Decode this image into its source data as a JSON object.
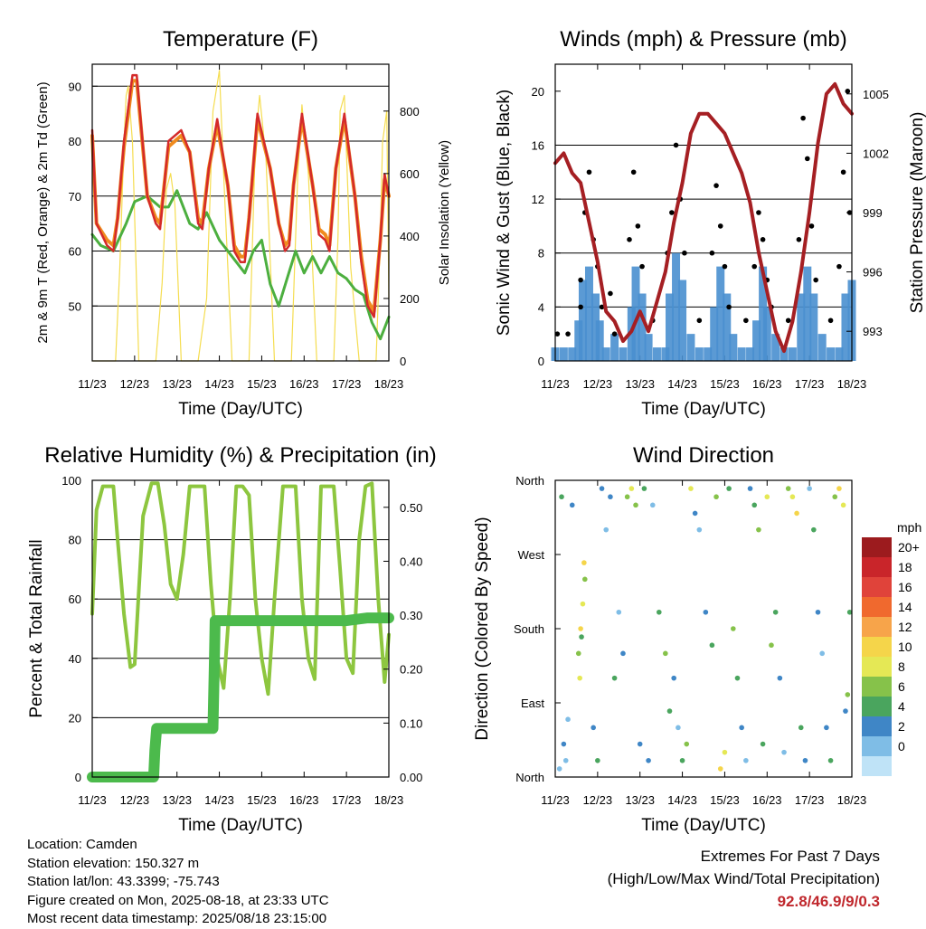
{
  "chart_data": [
    {
      "type": "line",
      "title": "Temperature (F)",
      "xlabel": "Time (Day/UTC)",
      "ylabel": "2m & 9m T (Red, Orange) & 2m Td (Green)",
      "y2label": "Solar Insolation (Yellow)",
      "x_ticks": [
        "11/23",
        "12/23",
        "13/23",
        "14/23",
        "15/23",
        "16/23",
        "17/23",
        "18/23"
      ],
      "xlim": [
        0,
        7
      ],
      "ylim": [
        40,
        94
      ],
      "y_ticks": [
        50,
        60,
        70,
        80,
        90
      ],
      "y2lim": [
        0,
        950
      ],
      "y2_ticks": [
        0,
        200,
        400,
        600,
        800
      ],
      "grid": true,
      "series": [
        {
          "name": "2m T",
          "color": "#d42a2a",
          "x": [
            0.0,
            0.1,
            0.35,
            0.5,
            0.6,
            0.75,
            0.95,
            1.05,
            1.3,
            1.5,
            1.6,
            1.8,
            2.1,
            2.3,
            2.5,
            2.6,
            2.75,
            2.95,
            3.2,
            3.35,
            3.5,
            3.6,
            3.7,
            3.9,
            4.2,
            4.4,
            4.55,
            4.65,
            4.75,
            4.95,
            5.2,
            5.35,
            5.5,
            5.6,
            5.75,
            5.95,
            6.2,
            6.35,
            6.5,
            6.65,
            6.8,
            6.9,
            7.0
          ],
          "values": [
            82,
            65,
            61,
            60,
            66,
            80,
            92,
            92,
            70,
            65,
            64,
            80,
            82,
            78,
            65,
            64,
            75,
            84,
            72,
            60,
            58,
            58,
            66,
            85,
            75,
            65,
            60,
            61,
            72,
            85,
            72,
            63,
            62,
            60,
            75,
            85,
            70,
            58,
            50,
            48,
            62,
            74,
            70
          ]
        },
        {
          "name": "9m T",
          "color": "#f08b1e",
          "x": [
            0.0,
            0.1,
            0.35,
            0.5,
            0.6,
            0.75,
            0.95,
            1.05,
            1.3,
            1.5,
            1.6,
            1.8,
            2.1,
            2.3,
            2.5,
            2.6,
            2.75,
            2.95,
            3.2,
            3.35,
            3.5,
            3.6,
            3.7,
            3.9,
            4.2,
            4.4,
            4.55,
            4.65,
            4.75,
            4.95,
            5.2,
            5.35,
            5.5,
            5.6,
            5.75,
            5.95,
            6.2,
            6.35,
            6.5,
            6.65,
            6.8,
            6.9,
            7.0
          ],
          "values": [
            81,
            65,
            62,
            61,
            66,
            79,
            91,
            91,
            70,
            66,
            65,
            79,
            81,
            78,
            66,
            65,
            75,
            83,
            72,
            61,
            59,
            59,
            66,
            84,
            75,
            65,
            61,
            62,
            72,
            84,
            72,
            64,
            63,
            61,
            75,
            84,
            70,
            59,
            51,
            49,
            62,
            73,
            70
          ]
        },
        {
          "name": "2m Td",
          "color": "#4caf3f",
          "x": [
            0.0,
            0.2,
            0.5,
            0.8,
            1.0,
            1.3,
            1.6,
            1.8,
            2.0,
            2.3,
            2.5,
            2.7,
            3.0,
            3.3,
            3.6,
            3.8,
            4.0,
            4.2,
            4.4,
            4.6,
            4.8,
            5.0,
            5.2,
            5.4,
            5.6,
            5.8,
            6.0,
            6.2,
            6.4,
            6.6,
            6.8,
            7.0
          ],
          "values": [
            63,
            61,
            60,
            65,
            69,
            70,
            68,
            68,
            71,
            65,
            64,
            67,
            62,
            59,
            56,
            60,
            62,
            54,
            50,
            55,
            60,
            56,
            59,
            56,
            59,
            56,
            55,
            53,
            52,
            47,
            44,
            48
          ]
        },
        {
          "name": "Solar Insolation",
          "color": "#f5dd50",
          "axis": "y2",
          "x": [
            0.0,
            0.3,
            0.55,
            0.65,
            0.75,
            0.8,
            0.85,
            0.95,
            1.1,
            1.3,
            1.5,
            1.65,
            1.75,
            1.85,
            1.95,
            2.1,
            2.3,
            2.5,
            2.7,
            2.85,
            3.0,
            3.1,
            3.3,
            3.5,
            3.7,
            3.85,
            3.95,
            4.1,
            4.3,
            4.5,
            4.7,
            4.85,
            4.95,
            5.1,
            5.3,
            5.5,
            5.7,
            5.8,
            5.85,
            5.95,
            6.1,
            6.3,
            6.5,
            6.7,
            6.8,
            6.85,
            6.95,
            7.0
          ],
          "values": [
            0,
            0,
            0,
            300,
            700,
            850,
            880,
            700,
            0,
            0,
            0,
            250,
            550,
            600,
            500,
            0,
            0,
            0,
            200,
            800,
            930,
            600,
            0,
            0,
            0,
            700,
            850,
            650,
            0,
            0,
            0,
            600,
            820,
            600,
            0,
            0,
            0,
            400,
            800,
            850,
            300,
            0,
            0,
            0,
            400,
            700,
            800,
            200
          ]
        }
      ]
    },
    {
      "type": "scatter",
      "title": "Winds (mph) & Pressure (mb)",
      "xlabel": "Time (Day/UTC)",
      "ylabel": "Sonic Wind & Gust (Blue, Black)",
      "y2label": "Station Pressure (Maroon)",
      "x_ticks": [
        "11/23",
        "12/23",
        "13/23",
        "14/23",
        "15/23",
        "16/23",
        "17/23",
        "18/23"
      ],
      "xlim": [
        0,
        7
      ],
      "ylim": [
        0,
        22
      ],
      "y_ticks": [
        0,
        4,
        8,
        12,
        16,
        20
      ],
      "y2lim": [
        991.5,
        1006.5
      ],
      "y2_ticks": [
        993,
        996,
        999,
        1002,
        1005
      ],
      "grid": true,
      "wind": {
        "name": "Sonic Wind",
        "color": "#4a90d0",
        "x": [
          0.0,
          0.2,
          0.4,
          0.55,
          0.65,
          0.8,
          0.95,
          1.05,
          1.2,
          1.4,
          1.6,
          1.8,
          1.9,
          2.05,
          2.2,
          2.4,
          2.6,
          2.7,
          2.85,
          3.0,
          3.2,
          3.4,
          3.6,
          3.75,
          3.9,
          4.05,
          4.2,
          4.4,
          4.6,
          4.75,
          4.9,
          5.0,
          5.2,
          5.4,
          5.6,
          5.8,
          5.95,
          6.1,
          6.3,
          6.5,
          6.7,
          6.85,
          7.0
        ],
        "values": [
          1,
          1,
          1,
          3,
          6,
          7,
          5,
          3,
          1,
          2,
          1,
          4,
          7,
          5,
          2,
          1,
          1,
          5,
          8,
          6,
          2,
          1,
          1,
          4,
          7,
          5,
          2,
          1,
          1,
          3,
          7,
          4,
          2,
          1,
          1,
          5,
          7,
          5,
          2,
          1,
          1,
          5,
          6
        ]
      },
      "gust": {
        "name": "Gust",
        "color": "#000000",
        "x": [
          0.05,
          0.3,
          0.6,
          0.7,
          0.8,
          0.9,
          1.0,
          1.1,
          1.4,
          1.75,
          1.85,
          1.95,
          2.05,
          2.3,
          2.65,
          2.75,
          2.85,
          2.95,
          3.05,
          3.4,
          3.7,
          3.8,
          3.9,
          4.0,
          4.1,
          4.5,
          4.7,
          4.8,
          4.9,
          5.0,
          5.1,
          5.5,
          5.75,
          5.85,
          5.95,
          6.05,
          6.15,
          6.5,
          6.7,
          6.8,
          6.9,
          6.95,
          2.92,
          1.3,
          0.6
        ],
        "values": [
          2,
          2,
          6,
          11,
          14,
          9,
          7,
          4,
          2,
          9,
          14,
          10,
          7,
          3,
          8,
          11,
          16,
          12,
          8,
          3,
          8,
          13,
          10,
          7,
          4,
          3,
          7,
          11,
          9,
          6,
          4,
          3,
          9,
          18,
          15,
          10,
          6,
          3,
          7,
          14,
          20,
          11,
          12,
          5,
          4
        ]
      },
      "pressure": {
        "name": "Station Pressure",
        "color": "#a51f23",
        "x": [
          0.0,
          0.2,
          0.4,
          0.6,
          0.8,
          1.0,
          1.2,
          1.4,
          1.6,
          1.8,
          2.0,
          2.2,
          2.4,
          2.6,
          2.8,
          3.0,
          3.2,
          3.4,
          3.6,
          3.8,
          4.0,
          4.2,
          4.4,
          4.6,
          4.8,
          5.0,
          5.2,
          5.4,
          5.6,
          5.8,
          6.0,
          6.2,
          6.4,
          6.6,
          6.8,
          7.0
        ],
        "values": [
          1001.5,
          1002,
          1001,
          1000.5,
          998.5,
          996.5,
          994,
          993.5,
          992.5,
          993,
          994,
          993,
          994.5,
          996,
          998.5,
          1000.5,
          1003,
          1004,
          1004,
          1003.5,
          1003,
          1002,
          1001,
          999.5,
          997,
          995,
          993,
          992,
          993.5,
          996,
          999,
          1002.5,
          1005,
          1005.5,
          1004.5,
          1004
        ]
      }
    },
    {
      "type": "line",
      "title": "Relative Humidity (%) & Precipitation (in)",
      "xlabel": "Time (Day/UTC)",
      "ylabel": "Percent & Total Rainfall",
      "x_ticks": [
        "11/23",
        "12/23",
        "13/23",
        "14/23",
        "15/23",
        "16/23",
        "17/23",
        "18/23"
      ],
      "xlim": [
        0,
        7
      ],
      "ylim": [
        0,
        100
      ],
      "y_ticks": [
        0,
        20,
        40,
        60,
        80,
        100
      ],
      "y2lim": [
        0,
        0.55
      ],
      "y2_ticks": [
        "0.00",
        "0.10",
        "0.20",
        "0.30",
        "0.40",
        "0.50"
      ],
      "grid": true,
      "series": [
        {
          "name": "Relative Humidity",
          "color": "#8dc63f",
          "x": [
            0.0,
            0.1,
            0.25,
            0.4,
            0.5,
            0.6,
            0.75,
            0.9,
            1.0,
            1.2,
            1.4,
            1.55,
            1.7,
            1.85,
            2.0,
            2.15,
            2.3,
            2.5,
            2.65,
            2.8,
            2.95,
            3.1,
            3.25,
            3.4,
            3.55,
            3.7,
            3.85,
            4.0,
            4.15,
            4.3,
            4.5,
            4.65,
            4.8,
            4.95,
            5.1,
            5.25,
            5.4,
            5.55,
            5.7,
            5.85,
            6.0,
            6.15,
            6.3,
            6.45,
            6.6,
            6.75,
            6.9,
            7.0
          ],
          "values": [
            55,
            90,
            98,
            98,
            98,
            80,
            55,
            37,
            38,
            88,
            99,
            99,
            85,
            65,
            60,
            75,
            98,
            98,
            98,
            65,
            40,
            30,
            60,
            98,
            98,
            95,
            60,
            40,
            28,
            60,
            98,
            98,
            98,
            60,
            40,
            33,
            98,
            98,
            98,
            70,
            40,
            35,
            80,
            98,
            99,
            60,
            32,
            48
          ]
        },
        {
          "name": "Total Precipitation",
          "color": "#4cba4c",
          "axis": "y2",
          "x": [
            0.0,
            0.5,
            1.0,
            1.45,
            1.48,
            1.52,
            2.0,
            2.5,
            2.85,
            2.88,
            2.9,
            3.5,
            4.0,
            5.0,
            6.0,
            6.5,
            7.0
          ],
          "values": [
            0,
            0,
            0,
            0,
            0.05,
            0.09,
            0.09,
            0.09,
            0.09,
            0.2,
            0.29,
            0.29,
            0.29,
            0.29,
            0.29,
            0.295,
            0.295
          ]
        }
      ]
    },
    {
      "type": "scatter",
      "title": "Wind Direction",
      "xlabel": "Time (Day/UTC)",
      "ylabel": "Direction (Colored By Speed)",
      "x_ticks": [
        "11/23",
        "12/23",
        "13/23",
        "14/23",
        "15/23",
        "16/23",
        "17/23",
        "18/23"
      ],
      "xlim": [
        0,
        7
      ],
      "ylim": [
        0,
        360
      ],
      "y_ticks": [
        "North",
        "East",
        "South",
        "West",
        "North"
      ],
      "legend": {
        "title": "mph",
        "labels": [
          "20+",
          "18",
          "16",
          "14",
          "12",
          "10",
          "8",
          "6",
          "4",
          "2",
          "0"
        ],
        "colors": [
          "#9c1b1e",
          "#c9252a",
          "#e0433a",
          "#f0692e",
          "#f7a44a",
          "#f5d54a",
          "#e5e855",
          "#86c24a",
          "#4aa55e",
          "#3f86c6",
          "#7fbde6",
          "#bfe3f7"
        ]
      },
      "points": {
        "x": [
          0.1,
          0.2,
          0.3,
          0.15,
          0.4,
          0.25,
          0.55,
          0.6,
          0.65,
          0.7,
          0.62,
          0.58,
          0.68,
          0.9,
          1.0,
          1.1,
          1.2,
          1.3,
          1.4,
          1.5,
          1.6,
          1.7,
          1.8,
          1.9,
          2.0,
          2.1,
          2.2,
          2.3,
          2.45,
          2.6,
          2.7,
          2.8,
          2.9,
          3.0,
          3.1,
          3.2,
          3.3,
          3.4,
          3.55,
          3.7,
          3.8,
          3.9,
          4.0,
          4.1,
          4.2,
          4.3,
          4.4,
          4.5,
          4.6,
          4.7,
          4.8,
          4.9,
          5.0,
          5.1,
          5.2,
          5.3,
          5.4,
          5.5,
          5.6,
          5.7,
          5.8,
          5.9,
          6.0,
          6.1,
          6.2,
          6.3,
          6.4,
          6.5,
          6.6,
          6.7,
          6.8,
          6.9,
          6.95,
          6.85
        ],
        "direction": [
          10,
          40,
          70,
          340,
          330,
          20,
          150,
          180,
          210,
          240,
          170,
          120,
          260,
          60,
          20,
          350,
          300,
          340,
          120,
          200,
          150,
          340,
          350,
          330,
          40,
          350,
          20,
          330,
          200,
          150,
          80,
          120,
          60,
          20,
          40,
          350,
          320,
          300,
          200,
          160,
          340,
          10,
          30,
          350,
          180,
          120,
          60,
          20,
          350,
          330,
          300,
          40,
          340,
          160,
          200,
          120,
          30,
          350,
          340,
          320,
          60,
          20,
          350,
          300,
          200,
          150,
          60,
          20,
          340,
          350,
          330,
          100,
          200,
          80
        ],
        "speed": [
          1,
          2,
          1,
          3,
          2,
          1,
          4,
          6,
          5,
          4,
          3,
          5,
          6,
          2,
          3,
          2,
          1,
          2,
          3,
          1,
          2,
          4,
          5,
          4,
          2,
          3,
          2,
          1,
          3,
          4,
          3,
          2,
          1,
          3,
          4,
          5,
          2,
          1,
          2,
          3,
          4,
          6,
          5,
          3,
          4,
          3,
          2,
          1,
          2,
          3,
          4,
          3,
          5,
          4,
          3,
          2,
          1,
          4,
          5,
          6,
          3,
          2,
          1,
          3,
          2,
          1,
          2,
          3,
          4,
          6,
          5,
          4,
          3,
          2
        ]
      }
    }
  ],
  "info": {
    "location": "Location: Camden",
    "elevation": "Station elevation: 150.327 m",
    "latlon": "Station lat/lon: 43.3399; -75.743",
    "created": "Figure created on Mon, 2025-08-18, at 23:33 UTC",
    "recent": "Most recent data timestamp: 2025/08/18 23:15:00"
  },
  "extremes": {
    "title": "Extremes For Past 7 Days",
    "subtitle": "(High/Low/Max Wind/Total Precipitation)",
    "value": "92.8/46.9/9/0.3"
  }
}
